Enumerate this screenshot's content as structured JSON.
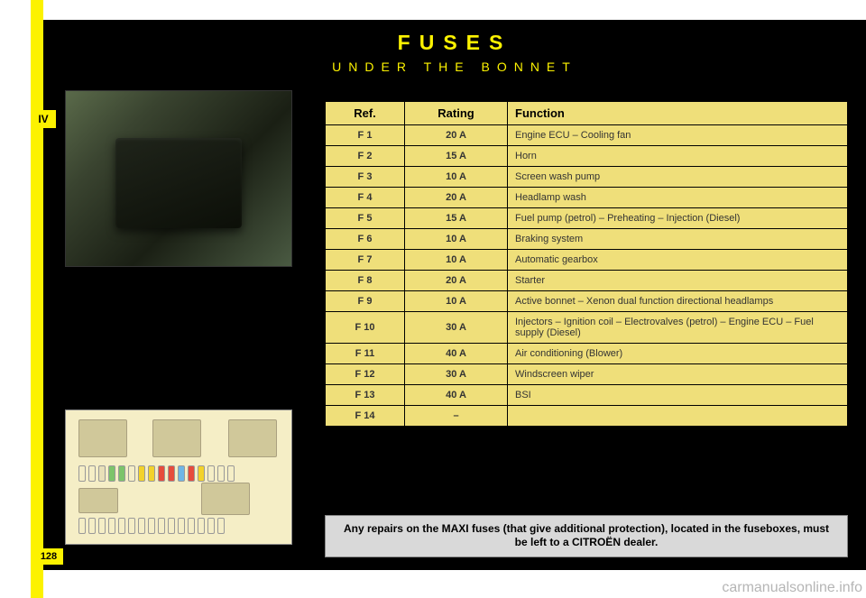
{
  "page": {
    "title": "FUSES",
    "subtitle": "UNDER THE BONNET",
    "section_marker": "IV",
    "page_number": "128",
    "watermark": "carmanualsonline.info"
  },
  "colors": {
    "yellow": "#fcf200",
    "black": "#000000",
    "table_bg": "#efdf7a",
    "note_bg": "#d9d9d9",
    "diagram_bg": "#f5eec6"
  },
  "fuse_table": {
    "columns": {
      "ref": "Ref.",
      "rating": "Rating",
      "function": "Function"
    },
    "rows": [
      {
        "ref": "F 1",
        "rating": "20 A",
        "function": "Engine ECU – Cooling fan"
      },
      {
        "ref": "F 2",
        "rating": "15 A",
        "function": "Horn"
      },
      {
        "ref": "F 3",
        "rating": "10 A",
        "function": "Screen wash pump"
      },
      {
        "ref": "F 4",
        "rating": "20 A",
        "function": "Headlamp wash"
      },
      {
        "ref": "F 5",
        "rating": "15 A",
        "function": "Fuel pump (petrol) – Preheating – Injection (Diesel)"
      },
      {
        "ref": "F 6",
        "rating": "10 A",
        "function": "Braking system"
      },
      {
        "ref": "F 7",
        "rating": "10 A",
        "function": "Automatic gearbox"
      },
      {
        "ref": "F 8",
        "rating": "20 A",
        "function": "Starter"
      },
      {
        "ref": "F 9",
        "rating": "10 A",
        "function": "Active bonnet – Xenon dual function directional headlamps"
      },
      {
        "ref": "F 10",
        "rating": "30 A",
        "function": "Injectors – Ignition coil – Electrovalves (petrol) – Engine ECU – Fuel supply (Diesel)"
      },
      {
        "ref": "F 11",
        "rating": "40 A",
        "function": "Air conditioning (Blower)"
      },
      {
        "ref": "F 12",
        "rating": "30 A",
        "function": "Windscreen wiper"
      },
      {
        "ref": "F 13",
        "rating": "40 A",
        "function": "BSI"
      },
      {
        "ref": "F 14",
        "rating": "–",
        "function": ""
      }
    ]
  },
  "note": "Any repairs on the MAXI fuses (that give additional protection), located in the fuseboxes, must be left to a CITROËN dealer."
}
